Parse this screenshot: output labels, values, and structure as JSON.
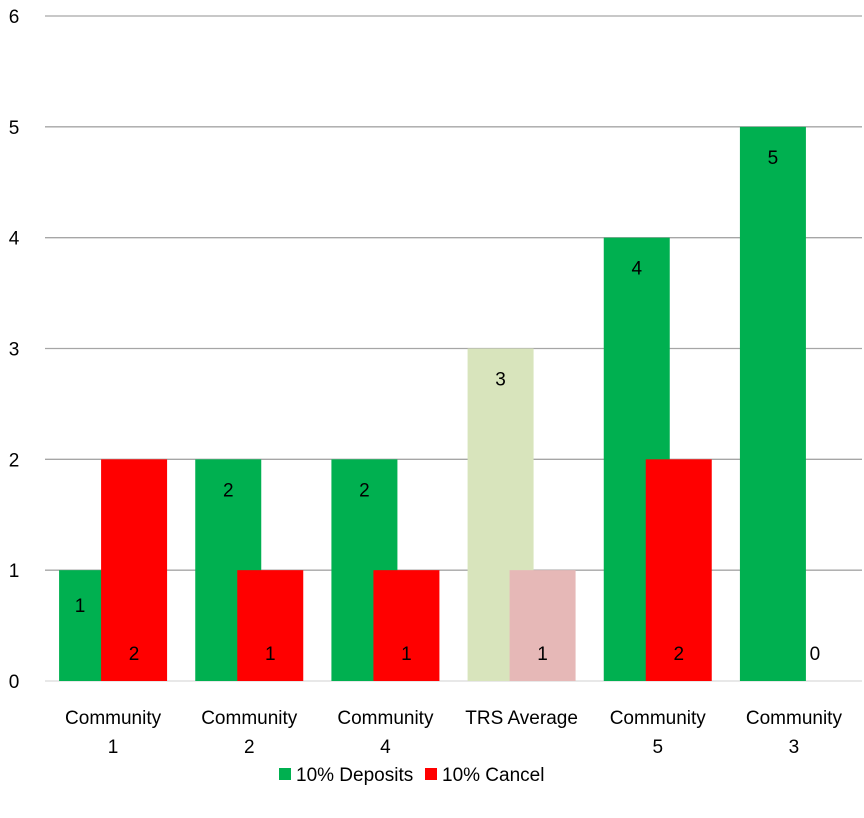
{
  "chart_data": {
    "type": "bar",
    "title": "",
    "xlabel": "",
    "ylabel": "",
    "ylim": [
      0,
      6
    ],
    "yticks": [
      0,
      1,
      2,
      3,
      4,
      5,
      6
    ],
    "grid": true,
    "legend_position": "bottom",
    "categories": [
      [
        "Community",
        "1"
      ],
      [
        "Community",
        "2"
      ],
      [
        "Community",
        "4"
      ],
      [
        "TRS Average",
        ""
      ],
      [
        "Community",
        "5"
      ],
      [
        "Community",
        "3"
      ]
    ],
    "series": [
      {
        "name": "10% Deposits",
        "color": "#00b050",
        "values": [
          1,
          2,
          2,
          3,
          4,
          5
        ],
        "point_colors": [
          "#00b050",
          "#00b050",
          "#00b050",
          "#d8e4bc",
          "#00b050",
          "#00b050"
        ]
      },
      {
        "name": "10% Cancel",
        "color": "#ff0000",
        "values": [
          2,
          1,
          1,
          1,
          2,
          0
        ],
        "point_colors": [
          "#ff0000",
          "#ff0000",
          "#ff0000",
          "#e6b8b7",
          "#ff0000",
          "#ff0000"
        ]
      }
    ]
  }
}
